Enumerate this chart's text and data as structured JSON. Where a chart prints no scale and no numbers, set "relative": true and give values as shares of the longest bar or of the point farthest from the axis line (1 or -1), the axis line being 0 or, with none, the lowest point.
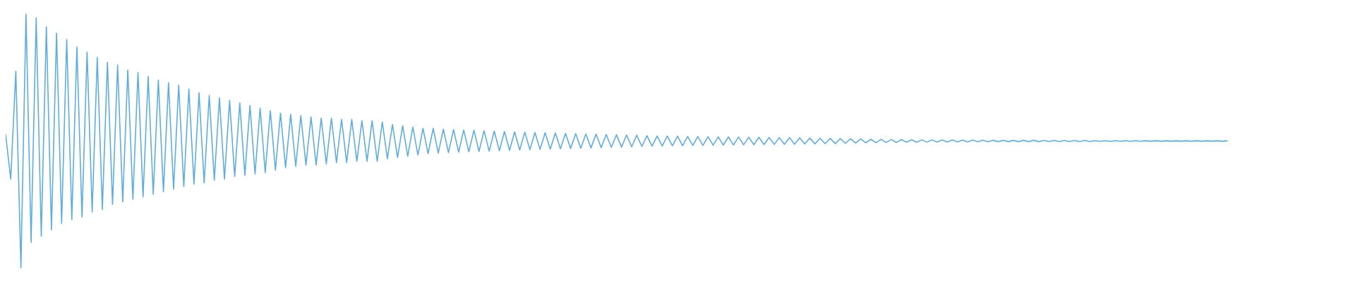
{
  "chart_data": {
    "type": "line",
    "relative": true,
    "categories": [
      null,
      null,
      null,
      null,
      null,
      null,
      null,
      null,
      null,
      null,
      null,
      null,
      null,
      null,
      null,
      null,
      null,
      null,
      null,
      null,
      null,
      null,
      null,
      null,
      null,
      null,
      null,
      null,
      null,
      null,
      null,
      null,
      null,
      null,
      null,
      null,
      null,
      null,
      null,
      null,
      null,
      null,
      null,
      null,
      null,
      null,
      null,
      null,
      null,
      null,
      null,
      null,
      null,
      null,
      null,
      null,
      null,
      null,
      null,
      null,
      null,
      null,
      null,
      null,
      null,
      null,
      null,
      null,
      null,
      null,
      null,
      null,
      null,
      null,
      null,
      null,
      null,
      null,
      null,
      null,
      null,
      null,
      null,
      null,
      null,
      null,
      null,
      null,
      null,
      null,
      null,
      null,
      null,
      null,
      null,
      null,
      null,
      null,
      null,
      null,
      null,
      null,
      null,
      null,
      null,
      null,
      null,
      null,
      null,
      null,
      null,
      null,
      null,
      null,
      null,
      null,
      null,
      null,
      null,
      null,
      null,
      null,
      null,
      null,
      null,
      null,
      null,
      null,
      null,
      null,
      null,
      null,
      null,
      null,
      null,
      null,
      null,
      null,
      null,
      null,
      null,
      null,
      null,
      null,
      null,
      null,
      null,
      null,
      null,
      null,
      null,
      null,
      null,
      null,
      null,
      null,
      null,
      null,
      null,
      null,
      null,
      null,
      null,
      null,
      null,
      null,
      null,
      null,
      null,
      null,
      null,
      null,
      null,
      null,
      null,
      null,
      null,
      null,
      null,
      null,
      null,
      null,
      null,
      null,
      null,
      null,
      null,
      null,
      null,
      null,
      null,
      null,
      null,
      null,
      null,
      null,
      null,
      null,
      null,
      null,
      null,
      null,
      null,
      null,
      null,
      null,
      null,
      null,
      null,
      null,
      null,
      null,
      null,
      null,
      null,
      null,
      null,
      null,
      null,
      null,
      null,
      null,
      null,
      null,
      null,
      null,
      null,
      null,
      null,
      null,
      null,
      null,
      null,
      null,
      null,
      null,
      null,
      null,
      null,
      null,
      null,
      null,
      null,
      null,
      null,
      null,
      null,
      null,
      null,
      null,
      null,
      null,
      null,
      null,
      null,
      null,
      null,
      null,
      null,
      null,
      null,
      null,
      null,
      null,
      null
    ],
    "series": [
      {
        "color": "#5dade2",
        "values": [
          0.525,
          0.35,
          0.775,
          0.0,
          1.0,
          0.1,
          0.985,
          0.125,
          0.95,
          0.15,
          0.925,
          0.175,
          0.9,
          0.19,
          0.87,
          0.2,
          0.85,
          0.22,
          0.83,
          0.23,
          0.81,
          0.25,
          0.8,
          0.26,
          0.78,
          0.27,
          0.77,
          0.28,
          0.755,
          0.29,
          0.74,
          0.3,
          0.73,
          0.31,
          0.72,
          0.32,
          0.705,
          0.33,
          0.69,
          0.335,
          0.68,
          0.345,
          0.67,
          0.35,
          0.66,
          0.36,
          0.65,
          0.365,
          0.64,
          0.37,
          0.63,
          0.375,
          0.62,
          0.385,
          0.61,
          0.395,
          0.605,
          0.4,
          0.6,
          0.405,
          0.595,
          0.405,
          0.59,
          0.41,
          0.59,
          0.415,
          0.585,
          0.415,
          0.585,
          0.42,
          0.58,
          0.42,
          0.58,
          0.42,
          0.575,
          0.43,
          0.565,
          0.435,
          0.56,
          0.44,
          0.555,
          0.445,
          0.55,
          0.45,
          0.55,
          0.4525,
          0.5465,
          0.4545,
          0.545,
          0.456,
          0.5435,
          0.4575,
          0.542,
          0.459,
          0.5405,
          0.46,
          0.539,
          0.4615,
          0.5375,
          0.463,
          0.536,
          0.4645,
          0.535,
          0.466,
          0.5335,
          0.467,
          0.5325,
          0.468,
          0.5315,
          0.4695,
          0.53,
          0.4705,
          0.529,
          0.4715,
          0.528,
          0.4725,
          0.527,
          0.474,
          0.5255,
          0.475,
          0.5245,
          0.476,
          0.5235,
          0.477,
          0.5225,
          0.4785,
          0.521,
          0.4795,
          0.52,
          0.4805,
          0.5195,
          0.481,
          0.519,
          0.4815,
          0.518,
          0.482,
          0.5175,
          0.4825,
          0.517,
          0.4835,
          0.5165,
          0.484,
          0.516,
          0.4845,
          0.5155,
          0.485,
          0.515,
          0.4855,
          0.5145,
          0.486,
          0.514,
          0.4865,
          0.5135,
          0.487,
          0.513,
          0.4875,
          0.5125,
          0.488,
          0.5115,
          0.4885,
          0.511,
          0.4895,
          0.51,
          0.49,
          0.5095,
          0.491,
          0.5085,
          0.492,
          0.508,
          0.4925,
          0.507,
          0.4935,
          0.5065,
          0.494,
          0.506,
          0.4945,
          0.5055,
          0.495,
          0.505,
          0.495,
          0.5045,
          0.4955,
          0.5045,
          0.496,
          0.504,
          0.496,
          0.504,
          0.4965,
          0.5035,
          0.4965,
          0.5035,
          0.497,
          0.503,
          0.497,
          0.5025,
          0.4975,
          0.5025,
          0.4975,
          0.5025,
          0.4975,
          0.5025,
          0.4975,
          0.5025,
          0.4975,
          0.502,
          0.498,
          0.502,
          0.498,
          0.502,
          0.498,
          0.502,
          0.498,
          0.502,
          0.498,
          0.5015,
          0.4985,
          0.5015,
          0.4985,
          0.5015,
          0.4985,
          0.5015,
          0.4985,
          0.5015,
          0.4985,
          0.501,
          0.499,
          0.501,
          0.499,
          0.501,
          0.499,
          0.501,
          0.499,
          0.501,
          0.499,
          0.501,
          0.499,
          0.501,
          0.499,
          0.501,
          0.499,
          0.501,
          null,
          null,
          null,
          null,
          null,
          null,
          null,
          null,
          null,
          null,
          null,
          null,
          null,
          null,
          null,
          null,
          null,
          null,
          null,
          null,
          null,
          null,
          null,
          null
        ]
      }
    ]
  }
}
